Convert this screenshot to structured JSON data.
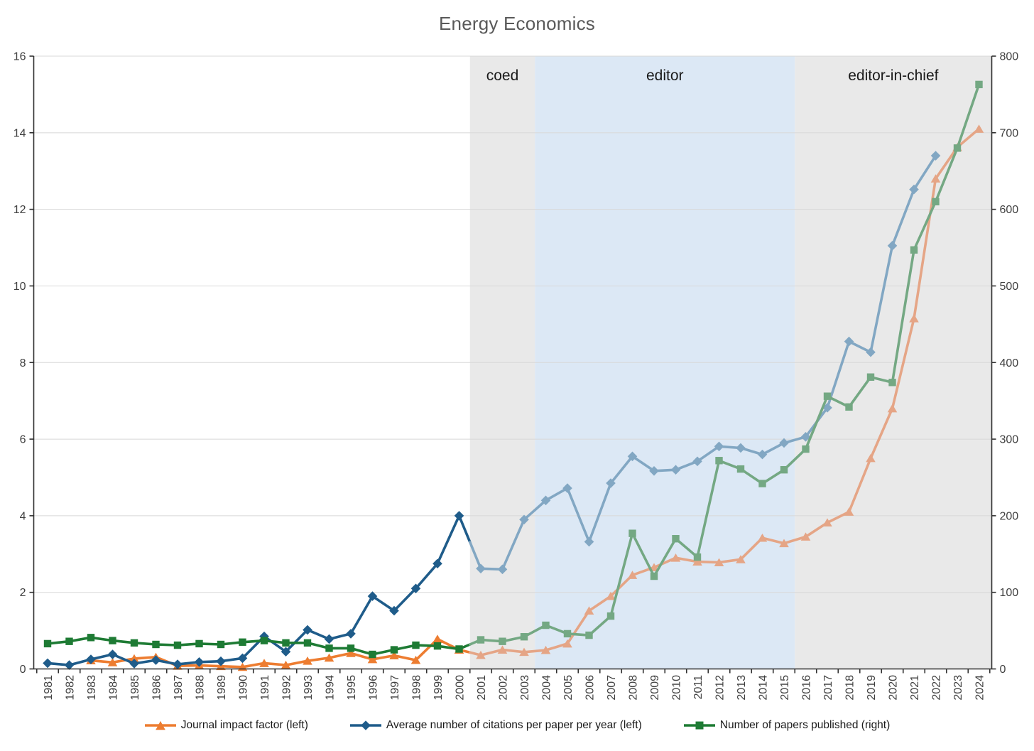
{
  "title": "Energy Economics",
  "legend": [
    {
      "label": "Journal impact factor (left)",
      "icon": "triangle-marker-icon"
    },
    {
      "label": "Average number of citations per paper per year (left)",
      "icon": "diamond-marker-icon"
    },
    {
      "label": "Number of papers published (right)",
      "icon": "square-marker-icon"
    }
  ],
  "chart_data": {
    "type": "line",
    "title": "Energy Economics",
    "x": [
      1981,
      1982,
      1983,
      1984,
      1985,
      1986,
      1987,
      1988,
      1989,
      1990,
      1991,
      1992,
      1993,
      1994,
      1995,
      1996,
      1997,
      1998,
      1999,
      2000,
      2001,
      2002,
      2003,
      2004,
      2005,
      2006,
      2007,
      2008,
      2009,
      2010,
      2011,
      2012,
      2013,
      2014,
      2015,
      2016,
      2017,
      2018,
      2019,
      2020,
      2021,
      2022,
      2023,
      2024
    ],
    "series": [
      {
        "name": "Journal impact factor",
        "axis": "left",
        "marker": "triangle",
        "color": "#ED7D31",
        "color_light": "#E5A586",
        "values": [
          null,
          null,
          0.22,
          0.17,
          0.27,
          0.31,
          0.08,
          0.09,
          0.07,
          0.05,
          0.15,
          0.1,
          0.21,
          0.29,
          0.41,
          0.25,
          0.35,
          0.23,
          0.78,
          0.5,
          0.36,
          0.5,
          0.44,
          0.49,
          0.66,
          1.52,
          1.9,
          2.45,
          2.65,
          2.9,
          2.8,
          2.78,
          2.86,
          3.42,
          3.28,
          3.45,
          3.82,
          4.1,
          5.5,
          6.8,
          9.15,
          12.8,
          13.62,
          14.1
        ]
      },
      {
        "name": "Average number of citations per paper per year",
        "axis": "left",
        "marker": "diamond",
        "color": "#1F5C8A",
        "color_light": "#82A7C3",
        "values": [
          0.15,
          0.1,
          0.25,
          0.38,
          0.14,
          0.23,
          0.12,
          0.18,
          0.2,
          0.28,
          0.85,
          0.45,
          1.02,
          0.78,
          0.92,
          1.9,
          1.52,
          2.1,
          2.75,
          4.0,
          2.62,
          2.6,
          3.9,
          4.4,
          4.72,
          3.32,
          4.85,
          5.55,
          5.17,
          5.2,
          5.42,
          5.81,
          5.77,
          5.6,
          5.9,
          6.06,
          6.82,
          8.55,
          8.27,
          11.05,
          12.52,
          13.4,
          null,
          null
        ]
      },
      {
        "name": "Number of papers published",
        "axis": "right",
        "marker": "square",
        "color": "#1E7B34",
        "color_light": "#74A883",
        "values": [
          33,
          36,
          41,
          37,
          34,
          32,
          31,
          33,
          32,
          35,
          37,
          34,
          34,
          27,
          27,
          19,
          25,
          31,
          30,
          26,
          38,
          36,
          42,
          57,
          46,
          44,
          69,
          177,
          121,
          170,
          146,
          272,
          261,
          242,
          260,
          287,
          356,
          342,
          381,
          374,
          547,
          610,
          680,
          763
        ]
      }
    ],
    "left_axis": {
      "min": 0,
      "max": 16,
      "ticks": [
        0,
        2,
        4,
        6,
        8,
        10,
        12,
        14,
        16
      ]
    },
    "right_axis": {
      "min": 0,
      "max": 800,
      "ticks": [
        0,
        100,
        200,
        300,
        400,
        500,
        600,
        700,
        800
      ]
    },
    "regions": [
      {
        "label": "coed",
        "from": 2000.5,
        "to": 2003.5,
        "fill": "#E9E9E9"
      },
      {
        "label": "editor",
        "from": 2003.5,
        "to": 2015.5,
        "fill": "#DCE8F5"
      },
      {
        "label": "editor-in-chief",
        "from": 2015.5,
        "to": 2024.6,
        "fill": "#E9E9E9"
      }
    ],
    "style_transition_year": 2000.5,
    "grid": true,
    "legend_position": "bottom",
    "colors": {
      "gridline": "#D8D8D8",
      "axis": "#303030",
      "tick_label": "#404040",
      "region_label": "#1a1a1a",
      "title": "#595959"
    }
  }
}
